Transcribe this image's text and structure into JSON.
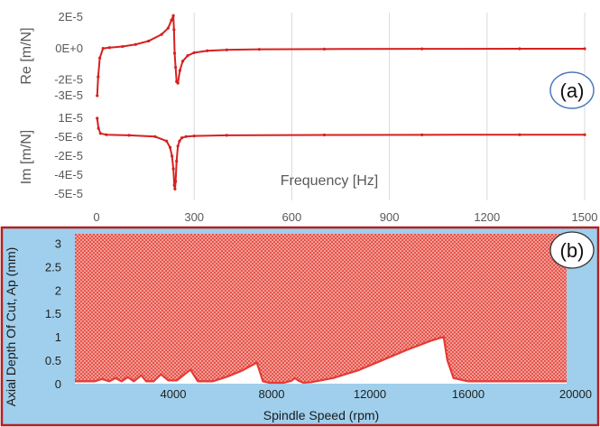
{
  "chart_data": [
    {
      "id": "a-real",
      "type": "line",
      "panel_label": "(a)",
      "ylabel": "Re [m/N]",
      "xlabel": "",
      "xlim": [
        0,
        1500
      ],
      "ylim": [
        -3e-05,
        2e-05
      ],
      "yticks": [
        "2E-5",
        "0E+0",
        "-2E-5",
        "-3E-5"
      ],
      "ytick_values": [
        2e-05,
        0,
        -2e-05,
        -3e-05
      ],
      "x_gridlines": [
        300,
        600,
        900,
        1200,
        1500
      ],
      "series": [
        {
          "color": "#d62020",
          "x": [
            2,
            5,
            10,
            20,
            40,
            80,
            120,
            160,
            200,
            220,
            230,
            236,
            238,
            240,
            243,
            246,
            250,
            256,
            265,
            280,
            300,
            340,
            400,
            500,
            700,
            1000,
            1300,
            1500
          ],
          "y": [
            -3e-05,
            -1.8e-05,
            -6e-06,
            1e-07,
            6e-07,
            1.3e-06,
            2.6e-06,
            4.8e-06,
            9e-06,
            1.3e-05,
            1.8e-05,
            2.1e-05,
            1.2e-05,
            -3e-06,
            -1.2e-05,
            -2.1e-05,
            -2.2e-05,
            -1.4e-05,
            -8e-06,
            -4.5e-06,
            -2.6e-06,
            -1.4e-06,
            -8e-07,
            -5e-07,
            -3e-07,
            -2e-07,
            -1e-07,
            -1e-07
          ]
        }
      ]
    },
    {
      "id": "a-imag",
      "type": "line",
      "ylabel": "Im [m/N]",
      "xlabel": "Frequency [Hz]",
      "xlim": [
        0,
        1500
      ],
      "ylim": [
        -5e-05,
        1e-05
      ],
      "yticks": [
        "1E-5",
        "-5E-6",
        "-2E-5",
        "-4E-5",
        "-5E-5"
      ],
      "xticks": [
        "0",
        "300",
        "600",
        "900",
        "1200",
        "1500"
      ],
      "xtick_values": [
        0,
        300,
        600,
        900,
        1200,
        1500
      ],
      "x_gridlines": [
        300,
        600,
        900,
        1200,
        1500
      ],
      "series": [
        {
          "color": "#d62020",
          "x": [
            2,
            6,
            12,
            30,
            100,
            180,
            215,
            226,
            232,
            236,
            239,
            241,
            243,
            246,
            250,
            255,
            262,
            275,
            300,
            400,
            700,
            1000,
            1300,
            1500
          ],
          "y": [
            1e-05,
            2e-06,
            -2e-06,
            -3e-06,
            -3.5e-06,
            -4.5e-06,
            -8e-06,
            -1.3e-05,
            -2e-05,
            -3e-05,
            -4.3e-05,
            -4.6e-05,
            -4e-05,
            -2.4e-05,
            -1.2e-05,
            -8e-06,
            -5.5e-06,
            -4.5e-06,
            -4e-06,
            -3.5e-06,
            -3.2e-06,
            -3.1e-06,
            -3e-06,
            -3e-06
          ]
        }
      ]
    },
    {
      "id": "b-stability",
      "type": "area",
      "panel_label": "(b)",
      "xlabel": "Spindle Speed (rpm)",
      "ylabel": "Axial Depth Of Cut, Ap (mm)",
      "xlim": [
        0,
        20000
      ],
      "ylim": [
        0,
        3.2
      ],
      "xticks": [
        "4000",
        "8000",
        "12000",
        "16000",
        "20000"
      ],
      "xtick_values": [
        4000,
        8000,
        12000,
        16000,
        20000
      ],
      "yticks": [
        "3",
        "2.5",
        "2",
        "1.5",
        "1",
        "0.5",
        "0"
      ],
      "ytick_values": [
        3,
        2.5,
        2,
        1.5,
        1,
        0.5,
        0
      ],
      "boundary": {
        "x": [
          0,
          800,
          1100,
          1400,
          1650,
          1900,
          2150,
          2400,
          2700,
          2900,
          3200,
          3500,
          3800,
          4150,
          4700,
          5000,
          5600,
          6200,
          6800,
          7400,
          7650,
          7900,
          8500,
          8800,
          8950,
          9100,
          9300,
          9600,
          10500,
          11500,
          12500,
          13500,
          14500,
          15000,
          15150,
          15400,
          16000,
          17000,
          18500,
          20000
        ],
        "y": [
          0.05,
          0.05,
          0.1,
          0.05,
          0.12,
          0.05,
          0.14,
          0.05,
          0.18,
          0.05,
          0.05,
          0.2,
          0.07,
          0.07,
          0.3,
          0.05,
          0.05,
          0.15,
          0.28,
          0.45,
          0.05,
          0.02,
          0.02,
          0.06,
          0.12,
          0.06,
          0.02,
          0.03,
          0.12,
          0.28,
          0.5,
          0.72,
          0.92,
          1.0,
          0.5,
          0.12,
          0.05,
          0.05,
          0.05,
          0.05
        ]
      }
    }
  ],
  "colors": {
    "curve": "#d62020",
    "frame_b": "#b52020",
    "blue_bg": "#9fcfec",
    "hatch": "#e4453f",
    "stable_bg": "#ffffff"
  }
}
